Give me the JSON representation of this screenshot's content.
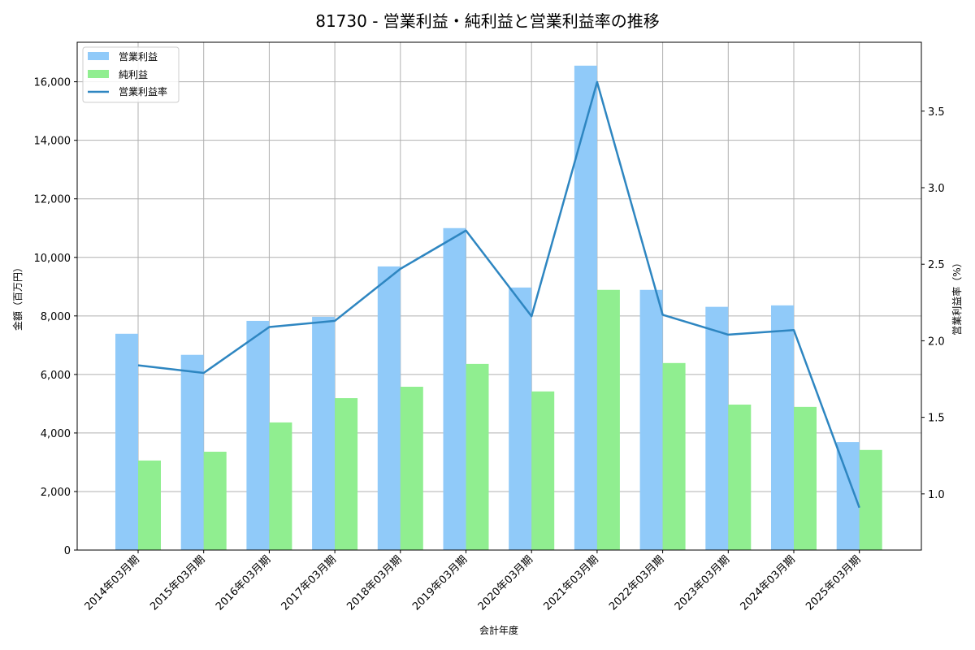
{
  "title": "81730 - 営業利益・純利益と営業利益率の推移",
  "colors": {
    "operating_profit": "#90CAF9",
    "net_profit": "#90EE90",
    "operating_margin": "#2E86C1"
  },
  "legend": {
    "items": [
      {
        "label": "営業利益",
        "type": "bar",
        "color": "#90CAF9"
      },
      {
        "label": "純利益",
        "type": "bar",
        "color": "#90EE90"
      },
      {
        "label": "営業利益率",
        "type": "line",
        "color": "#2E86C1"
      }
    ]
  },
  "axes": {
    "xlabel": "会計年度",
    "ylabel_left": "金額（百万円）",
    "ylabel_right": "営業利益率（%）",
    "left_ticks": [
      "0",
      "2,000",
      "4,000",
      "6,000",
      "8,000",
      "10,000",
      "12,000",
      "14,000",
      "16,000"
    ],
    "right_ticks": [
      "1.0",
      "1.5",
      "2.0",
      "2.5",
      "3.0",
      "3.5"
    ]
  },
  "chart_data": {
    "type": "bar",
    "title": "81730 - 営業利益・純利益と営業利益率の推移",
    "xlabel": "会計年度",
    "ylabel": "金額（百万円）",
    "ylabel_right": "営業利益率（%）",
    "ylim": [
      0,
      17350
    ],
    "ylim_right": [
      0.633,
      3.95
    ],
    "grid": true,
    "legend_position": "upper left",
    "categories": [
      "2014年03月期",
      "2015年03月期",
      "2016年03月期",
      "2017年03月期",
      "2018年03月期",
      "2019年03月期",
      "2020年03月期",
      "2021年03月期",
      "2022年03月期",
      "2023年03月期",
      "2024年03月期",
      "2025年03月期"
    ],
    "series": [
      {
        "name": "営業利益",
        "type": "bar",
        "axis": "left",
        "values": [
          7390,
          6670,
          7830,
          7970,
          9690,
          11000,
          8970,
          16550,
          8890,
          8310,
          8360,
          3690
        ]
      },
      {
        "name": "純利益",
        "type": "bar",
        "axis": "left",
        "values": [
          3060,
          3360,
          4360,
          5190,
          5580,
          6360,
          5420,
          8890,
          6390,
          4970,
          4890,
          3420
        ]
      },
      {
        "name": "営業利益率",
        "type": "line",
        "axis": "right",
        "values": [
          1.84,
          1.79,
          2.09,
          2.13,
          2.47,
          2.72,
          2.16,
          3.69,
          2.17,
          2.04,
          2.07,
          0.91
        ]
      }
    ]
  }
}
